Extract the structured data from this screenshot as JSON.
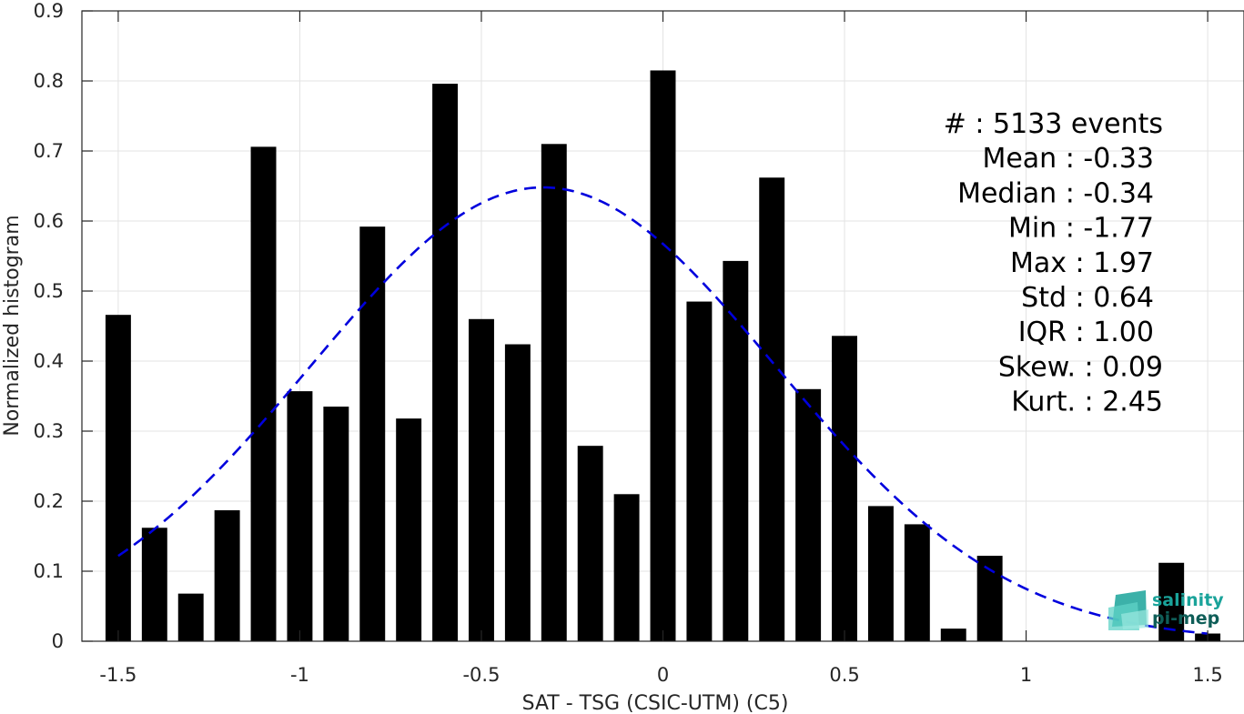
{
  "chart_data": {
    "type": "bar",
    "xlabel": "SAT - TSG (CSIC-UTM) (C5)",
    "ylabel": "Normalized histogram",
    "xlim": [
      -1.6,
      1.6
    ],
    "ylim": [
      0,
      0.9
    ],
    "x_ticks": [
      -1.5,
      -1,
      -0.5,
      0,
      0.5,
      1,
      1.5
    ],
    "x_tick_labels": [
      "-1.5",
      "-1",
      "-0.5",
      "0",
      "0.5",
      "1",
      "1.5"
    ],
    "y_ticks": [
      0,
      0.1,
      0.2,
      0.3,
      0.4,
      0.5,
      0.6,
      0.7,
      0.8,
      0.9
    ],
    "y_tick_labels": [
      "0",
      "0.1",
      "0.2",
      "0.3",
      "0.4",
      "0.5",
      "0.6",
      "0.7",
      "0.8",
      "0.9"
    ],
    "grid": true,
    "bar_color": "#000000",
    "bars": {
      "x": [
        -1.5,
        -1.4,
        -1.3,
        -1.2,
        -1.1,
        -1.0,
        -0.9,
        -0.8,
        -0.7,
        -0.6,
        -0.5,
        -0.4,
        -0.3,
        -0.2,
        -0.1,
        0.0,
        0.1,
        0.2,
        0.3,
        0.4,
        0.5,
        0.6,
        0.7,
        0.8,
        0.9,
        1.0,
        1.1,
        1.2,
        1.3,
        1.4,
        1.5
      ],
      "values": [
        0.466,
        0.162,
        0.068,
        0.187,
        0.706,
        0.357,
        0.335,
        0.592,
        0.318,
        0.796,
        0.46,
        0.424,
        0.71,
        0.279,
        0.21,
        0.815,
        0.485,
        0.543,
        0.662,
        0.36,
        0.436,
        0.193,
        0.167,
        0.018,
        0.122,
        0,
        0,
        0,
        0,
        0.112,
        0.011
      ]
    },
    "fit_curve": {
      "style": "dashed",
      "color": "#0000dd",
      "mean": -0.33,
      "std": 0.64,
      "peak": 0.648,
      "x_range": [
        -1.5,
        1.5
      ]
    },
    "stats": [
      {
        "label": "#  ",
        "value": ": 5133 events"
      },
      {
        "label": "Mean",
        "value": ": -0.33"
      },
      {
        "label": "Median",
        "value": ": -0.34"
      },
      {
        "label": "Min",
        "value": ": -1.77"
      },
      {
        "label": "Max",
        "value": ": 1.97"
      },
      {
        "label": "Std",
        "value": ": 0.64"
      },
      {
        "label": "IQR",
        "value": ": 1.00"
      },
      {
        "label": "Skew.",
        "value": ": 0.09"
      },
      {
        "label": "Kurt.",
        "value": ": 2.45"
      }
    ]
  },
  "logo": {
    "line1": "salinity",
    "line2": "pi-mep",
    "color1": "#1aa39a",
    "color2": "#0f5e58"
  }
}
